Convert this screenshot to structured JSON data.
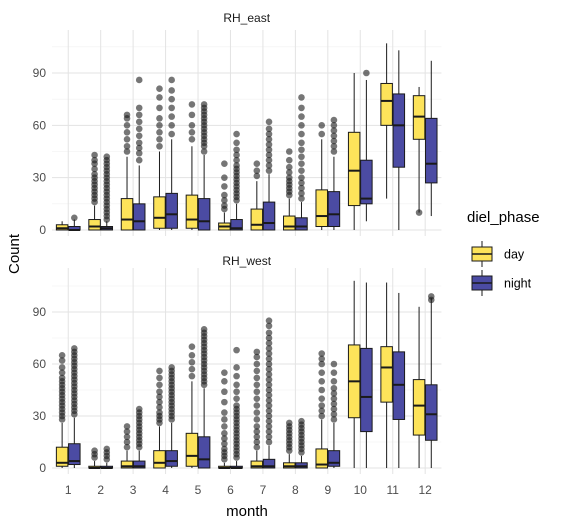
{
  "chart_data": {
    "type": "boxplot",
    "xlabel": "month",
    "ylabel": "Count",
    "categories": [
      "1",
      "2",
      "3",
      "4",
      "5",
      "6",
      "7",
      "8",
      "9",
      "10",
      "11",
      "12"
    ],
    "ylim": [
      -5,
      112
    ],
    "yticks": [
      0,
      30,
      60,
      90
    ],
    "grid": true,
    "legend": {
      "title": "diel_phase",
      "position": "right",
      "items": [
        {
          "label": "day",
          "color": "#FDE35A"
        },
        {
          "label": "night",
          "color": "#4B4BA3"
        }
      ]
    },
    "panels": [
      {
        "title": "RH_east",
        "series": [
          {
            "name": "day",
            "color": "#FDE35A",
            "boxes": [
              {
                "whislo": 0,
                "q1": 0,
                "med": 1,
                "q3": 3,
                "whishi": 5,
                "outliers": []
              },
              {
                "whislo": 0,
                "q1": 0,
                "med": 2,
                "q3": 6,
                "whishi": 14,
                "outliers": [
                  16,
                  18,
                  20,
                  22,
                  24,
                  26,
                  28,
                  30,
                  32,
                  35,
                  38,
                  40,
                  43
                ]
              },
              {
                "whislo": 0,
                "q1": 0,
                "med": 6,
                "q3": 18,
                "whishi": 42,
                "outliers": [
                  45,
                  48,
                  52,
                  56,
                  60,
                  64,
                  66
                ]
              },
              {
                "whislo": 0,
                "q1": 1,
                "med": 7,
                "q3": 19,
                "whishi": 45,
                "outliers": [
                  48,
                  52,
                  56,
                  60,
                  64,
                  70,
                  76,
                  81
                ]
              },
              {
                "whislo": 0,
                "q1": 1,
                "med": 6,
                "q3": 20,
                "whishi": 48,
                "outliers": [
                  52,
                  56,
                  60,
                  66,
                  72
                ]
              },
              {
                "whislo": 0,
                "q1": 0,
                "med": 2,
                "q3": 4,
                "whishi": 10,
                "outliers": [
                  12,
                  14,
                  17,
                  20,
                  25,
                  30,
                  38
                ]
              },
              {
                "whislo": 0,
                "q1": 0,
                "med": 3,
                "q3": 12,
                "whishi": 28,
                "outliers": [
                  31,
                  34,
                  38
                ]
              },
              {
                "whislo": 0,
                "q1": 0,
                "med": 2,
                "q3": 8,
                "whishi": 18,
                "outliers": [
                  20,
                  22,
                  24,
                  26,
                  28,
                  30,
                  33,
                  36,
                  40,
                  45
                ]
              },
              {
                "whislo": 0,
                "q1": 2,
                "med": 8,
                "q3": 23,
                "whishi": 52,
                "outliers": [
                  55,
                  60
                ]
              },
              {
                "whislo": 0,
                "q1": 14,
                "med": 34,
                "q3": 56,
                "whishi": 90,
                "outliers": []
              },
              {
                "whislo": 18,
                "q1": 60,
                "med": 74,
                "q3": 84,
                "whishi": 107,
                "outliers": []
              },
              {
                "whislo": 10,
                "q1": 52,
                "med": 65,
                "q3": 77,
                "whishi": 82,
                "outliers": [
                  10
                ]
              }
            ]
          },
          {
            "name": "night",
            "color": "#4B4BA3",
            "boxes": [
              {
                "whislo": 0,
                "q1": 0,
                "med": 0,
                "q3": 2,
                "whishi": 6,
                "outliers": [
                  7
                ]
              },
              {
                "whislo": 0,
                "q1": 0,
                "med": 1,
                "q3": 2,
                "whishi": 5,
                "outliers": [
                  6,
                  8,
                  10,
                  12,
                  14,
                  16,
                  18,
                  20,
                  22,
                  24,
                  26,
                  28,
                  30,
                  32,
                  34,
                  36,
                  38,
                  40,
                  42
                ]
              },
              {
                "whislo": 0,
                "q1": 0,
                "med": 5,
                "q3": 15,
                "whishi": 37,
                "outliers": [
                  40,
                  44,
                  47,
                  50,
                  54,
                  58,
                  62,
                  66,
                  70,
                  86
                ]
              },
              {
                "whislo": 0,
                "q1": 1,
                "med": 9,
                "q3": 21,
                "whishi": 52,
                "outliers": [
                  55,
                  60,
                  65,
                  70,
                  75,
                  80,
                  86
                ]
              },
              {
                "whislo": 0,
                "q1": 0,
                "med": 5,
                "q3": 18,
                "whishi": 43,
                "outliers": [
                  45,
                  48,
                  50,
                  52,
                  54,
                  56,
                  58,
                  60,
                  62,
                  64,
                  66,
                  68,
                  70,
                  72
                ]
              },
              {
                "whislo": 0,
                "q1": 0,
                "med": 1,
                "q3": 6,
                "whishi": 15,
                "outliers": [
                  17,
                  19,
                  21,
                  23,
                  25,
                  27,
                  29,
                  31,
                  33,
                  35,
                  37,
                  40,
                  43,
                  46,
                  50,
                  55
                ]
              },
              {
                "whislo": 0,
                "q1": 0,
                "med": 4,
                "q3": 16,
                "whishi": 32,
                "outliers": [
                  34,
                  37,
                  40,
                  43,
                  46,
                  49,
                  52,
                  55,
                  58,
                  62
                ]
              },
              {
                "whislo": 0,
                "q1": 0,
                "med": 2,
                "q3": 7,
                "whishi": 16,
                "outliers": [
                  18,
                  21,
                  24,
                  27,
                  30,
                  34,
                  38,
                  42,
                  46,
                  50,
                  55,
                  60,
                  65,
                  70,
                  76
                ]
              },
              {
                "whislo": 0,
                "q1": 2,
                "med": 9,
                "q3": 22,
                "whishi": 42,
                "outliers": [
                  45,
                  48,
                  51,
                  54,
                  57,
                  60,
                  63
                ]
              },
              {
                "whislo": 5,
                "q1": 15,
                "med": 18,
                "q3": 40,
                "whishi": 86,
                "outliers": [
                  90
                ]
              },
              {
                "whislo": 0,
                "q1": 36,
                "med": 60,
                "q3": 78,
                "whishi": 103,
                "outliers": []
              },
              {
                "whislo": 8,
                "q1": 27,
                "med": 38,
                "q3": 64,
                "whishi": 97,
                "outliers": []
              }
            ]
          }
        ]
      },
      {
        "title": "RH_west",
        "series": [
          {
            "name": "day",
            "color": "#FDE35A",
            "boxes": [
              {
                "whislo": 0,
                "q1": 1,
                "med": 3,
                "q3": 12,
                "whishi": 26,
                "outliers": [
                  28,
                  30,
                  32,
                  34,
                  36,
                  38,
                  40,
                  42,
                  44,
                  46,
                  48,
                  50,
                  52,
                  55,
                  58,
                  62,
                  65
                ]
              },
              {
                "whislo": 0,
                "q1": 0,
                "med": 0,
                "q3": 1,
                "whishi": 4,
                "outliers": [
                  6,
                  8,
                  10
                ]
              },
              {
                "whislo": 0,
                "q1": 0,
                "med": 1,
                "q3": 4,
                "whishi": 10,
                "outliers": [
                  12,
                  15,
                  18,
                  21,
                  24
                ]
              },
              {
                "whislo": 0,
                "q1": 0,
                "med": 3,
                "q3": 10,
                "whishi": 24,
                "outliers": [
                  26,
                  28,
                  30,
                  32,
                  35,
                  38,
                  41,
                  44,
                  48,
                  52,
                  56
                ]
              },
              {
                "whislo": 0,
                "q1": 1,
                "med": 7,
                "q3": 20,
                "whishi": 50,
                "outliers": [
                  53,
                  57,
                  61,
                  65,
                  70
                ]
              },
              {
                "whislo": 0,
                "q1": 0,
                "med": 0,
                "q3": 1,
                "whishi": 3,
                "outliers": [
                  5,
                  7,
                  9,
                  11,
                  14,
                  17,
                  20,
                  24,
                  28,
                  32,
                  38,
                  44,
                  50,
                  55
                ]
              },
              {
                "whislo": 0,
                "q1": 0,
                "med": 1,
                "q3": 4,
                "whishi": 10,
                "outliers": [
                  12,
                  15,
                  18,
                  21,
                  24,
                  28,
                  32,
                  36,
                  40,
                  44,
                  48,
                  52,
                  56,
                  60,
                  64,
                  67
                ]
              },
              {
                "whislo": 0,
                "q1": 0,
                "med": 1,
                "q3": 3,
                "whishi": 8,
                "outliers": [
                  10,
                  12,
                  14,
                  16,
                  18,
                  20,
                  22,
                  24,
                  26
                ]
              },
              {
                "whislo": 0,
                "q1": 0,
                "med": 2,
                "q3": 11,
                "whishi": 28,
                "outliers": [
                  30,
                  33,
                  36,
                  40,
                  45,
                  50,
                  55,
                  60,
                  63,
                  66
                ]
              },
              {
                "whislo": 0,
                "q1": 29,
                "med": 50,
                "q3": 71,
                "whishi": 108,
                "outliers": []
              },
              {
                "whislo": 0,
                "q1": 38,
                "med": 58,
                "q3": 70,
                "whishi": 107,
                "outliers": []
              },
              {
                "whislo": 0,
                "q1": 19,
                "med": 36,
                "q3": 51,
                "whishi": 93,
                "outliers": []
              }
            ]
          },
          {
            "name": "night",
            "color": "#4B4BA3",
            "boxes": [
              {
                "whislo": 0,
                "q1": 2,
                "med": 4,
                "q3": 14,
                "whishi": 29,
                "outliers": [
                  31,
                  33,
                  35,
                  37,
                  39,
                  41,
                  43,
                  45,
                  47,
                  49,
                  51,
                  53,
                  55,
                  57,
                  59,
                  61,
                  63,
                  65,
                  67,
                  69
                ]
              },
              {
                "whislo": 0,
                "q1": 0,
                "med": 0,
                "q3": 1,
                "whishi": 3,
                "outliers": [
                  5,
                  7,
                  9,
                  11
                ]
              },
              {
                "whislo": 0,
                "q1": 0,
                "med": 1,
                "q3": 4,
                "whishi": 10,
                "outliers": [
                  12,
                  14,
                  16,
                  18,
                  20,
                  22,
                  24,
                  26,
                  28,
                  30,
                  32,
                  34
                ]
              },
              {
                "whislo": 0,
                "q1": 1,
                "med": 4,
                "q3": 10,
                "whishi": 26,
                "outliers": [
                  28,
                  30,
                  32,
                  34,
                  36,
                  38,
                  40,
                  42,
                  44,
                  46,
                  48,
                  50,
                  52,
                  54,
                  56,
                  58
                ]
              },
              {
                "whislo": 0,
                "q1": 0,
                "med": 5,
                "q3": 18,
                "whishi": 46,
                "outliers": [
                  48,
                  50,
                  52,
                  54,
                  56,
                  58,
                  60,
                  62,
                  64,
                  66,
                  68,
                  70,
                  72,
                  74,
                  76,
                  78,
                  80
                ]
              },
              {
                "whislo": 0,
                "q1": 0,
                "med": 0,
                "q3": 1,
                "whishi": 4,
                "outliers": [
                  6,
                  8,
                  10,
                  12,
                  14,
                  16,
                  18,
                  20,
                  22,
                  24,
                  26,
                  28,
                  30,
                  32,
                  34,
                  36,
                  40,
                  44,
                  48,
                  53,
                  58,
                  68
                ]
              },
              {
                "whislo": 0,
                "q1": 0,
                "med": 1,
                "q3": 5,
                "whishi": 13,
                "outliers": [
                  15,
                  18,
                  21,
                  24,
                  27,
                  30,
                  33,
                  36,
                  39,
                  42,
                  45,
                  48,
                  51,
                  54,
                  57,
                  60,
                  63,
                  66,
                  69,
                  72,
                  75,
                  78,
                  82,
                  85
                ]
              },
              {
                "whislo": 0,
                "q1": 0,
                "med": 1,
                "q3": 3,
                "whishi": 7,
                "outliers": [
                  9,
                  11,
                  13,
                  15,
                  17,
                  19,
                  21,
                  23,
                  25,
                  27
                ]
              },
              {
                "whislo": 0,
                "q1": 1,
                "med": 3,
                "q3": 10,
                "whishi": 26,
                "outliers": [
                  28,
                  31,
                  34,
                  37,
                  40,
                  43,
                  46,
                  50,
                  55,
                  60
                ]
              },
              {
                "whislo": 0,
                "q1": 21,
                "med": 41,
                "q3": 69,
                "whishi": 107,
                "outliers": []
              },
              {
                "whislo": 0,
                "q1": 28,
                "med": 48,
                "q3": 67,
                "whishi": 101,
                "outliers": []
              },
              {
                "whislo": 0,
                "q1": 16,
                "med": 31,
                "q3": 48,
                "whishi": 98,
                "outliers": [
                  97,
                  99
                ]
              }
            ]
          }
        ]
      }
    ]
  }
}
